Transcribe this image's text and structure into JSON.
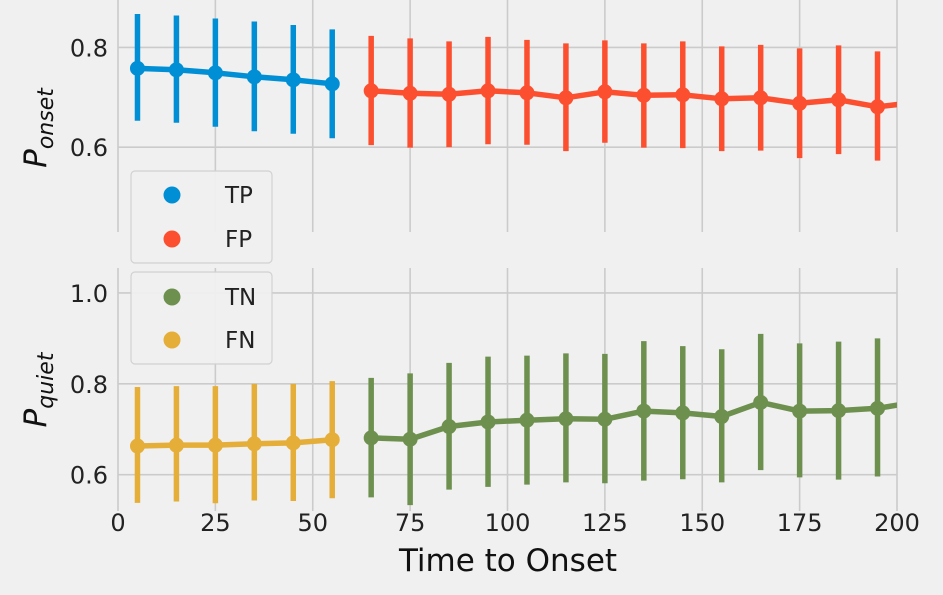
{
  "chart_data": [
    {
      "type": "line",
      "panel": "top",
      "ylabel_main": "P",
      "ylabel_sub": "onset",
      "xlim": [
        0,
        200
      ],
      "ylim": [
        0.43,
        0.895
      ],
      "yticks": [
        0.6,
        0.8
      ],
      "ytick_labels": [
        "0.6",
        "0.8"
      ],
      "grid": true,
      "legend_position": "lower-left",
      "series": [
        {
          "name": "TP",
          "color": "#008fd5",
          "x": [
            5,
            15,
            25,
            35,
            45,
            55
          ],
          "y": [
            0.758,
            0.755,
            0.749,
            0.741,
            0.735,
            0.727
          ],
          "err_low": [
            0.653,
            0.649,
            0.641,
            0.632,
            0.627,
            0.618
          ],
          "err_high": [
            0.867,
            0.864,
            0.858,
            0.852,
            0.845,
            0.836
          ]
        },
        {
          "name": "FP",
          "color": "#fc4f30",
          "x": [
            65,
            75,
            85,
            95,
            105,
            115,
            125,
            135,
            145,
            155,
            165,
            175,
            185,
            195,
            205
          ],
          "y": [
            0.713,
            0.708,
            0.706,
            0.713,
            0.709,
            0.699,
            0.711,
            0.704,
            0.705,
            0.697,
            0.699,
            0.688,
            0.695,
            0.681,
            0.69
          ],
          "err_low": [
            0.604,
            0.599,
            0.6,
            0.606,
            0.605,
            0.592,
            0.609,
            0.599,
            0.598,
            0.592,
            0.593,
            0.578,
            0.586,
            0.573,
            0.58
          ],
          "err_high": [
            0.823,
            0.818,
            0.812,
            0.821,
            0.815,
            0.808,
            0.814,
            0.808,
            0.812,
            0.802,
            0.805,
            0.798,
            0.804,
            0.792,
            0.8
          ]
        }
      ]
    },
    {
      "type": "line",
      "panel": "bottom",
      "ylabel_main": "P",
      "ylabel_sub": "quiet",
      "xlabel": "Time to Onset",
      "xlim": [
        0,
        200
      ],
      "ylim": [
        0.52,
        1.055
      ],
      "yticks": [
        0.6,
        0.8,
        1.0
      ],
      "ytick_labels": [
        "0.6",
        "0.8",
        "1.0"
      ],
      "xticks": [
        0,
        25,
        50,
        75,
        100,
        125,
        150,
        175,
        200
      ],
      "xtick_labels": [
        "0",
        "25",
        "50",
        "75",
        "100",
        "125",
        "150",
        "175",
        "200"
      ],
      "grid": true,
      "legend_position": "upper-left",
      "series": [
        {
          "name": "TN",
          "color": "#6d904f",
          "x": [
            65,
            75,
            85,
            95,
            105,
            115,
            125,
            135,
            145,
            155,
            165,
            175,
            185,
            195,
            205
          ],
          "y": [
            0.681,
            0.678,
            0.706,
            0.716,
            0.72,
            0.723,
            0.722,
            0.74,
            0.736,
            0.728,
            0.759,
            0.74,
            0.741,
            0.746,
            0.76
          ],
          "err_low": [
            0.55,
            0.533,
            0.567,
            0.573,
            0.578,
            0.583,
            0.581,
            0.587,
            0.59,
            0.583,
            0.61,
            0.594,
            0.589,
            0.596,
            0.6
          ],
          "err_high": [
            0.813,
            0.823,
            0.846,
            0.86,
            0.862,
            0.867,
            0.866,
            0.894,
            0.883,
            0.876,
            0.91,
            0.889,
            0.893,
            0.9,
            0.9
          ]
        },
        {
          "name": "FN",
          "color": "#e5ae38",
          "x": [
            5,
            15,
            25,
            35,
            45,
            55
          ],
          "y": [
            0.663,
            0.665,
            0.665,
            0.668,
            0.67,
            0.677
          ],
          "err_low": [
            0.538,
            0.541,
            0.537,
            0.543,
            0.542,
            0.548
          ],
          "err_high": [
            0.793,
            0.795,
            0.795,
            0.8,
            0.8,
            0.806
          ]
        }
      ]
    }
  ]
}
